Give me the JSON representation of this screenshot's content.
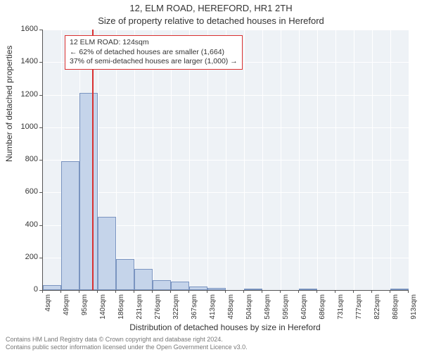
{
  "title_line1": "12, ELM ROAD, HEREFORD, HR1 2TH",
  "title_line2": "Size of property relative to detached houses in Hereford",
  "yaxis_label": "Number of detached properties",
  "xaxis_label": "Distribution of detached houses by size in Hereford",
  "chart": {
    "type": "histogram",
    "background_color": "#eef2f6",
    "grid_color": "#ffffff",
    "axis_color": "#555555",
    "bar_fill": "#c5d4ea",
    "bar_border": "#7a94c0",
    "marker_x": 124,
    "marker_color": "#d93030",
    "ylim": [
      0,
      1600
    ],
    "ytick_step": 200,
    "yticks": [
      0,
      200,
      400,
      600,
      800,
      1000,
      1200,
      1400,
      1600
    ],
    "xlim": [
      0,
      920
    ],
    "x_bin_width": 45.4,
    "xtick_labels": [
      "4sqm",
      "49sqm",
      "95sqm",
      "140sqm",
      "186sqm",
      "231sqm",
      "276sqm",
      "322sqm",
      "367sqm",
      "413sqm",
      "458sqm",
      "504sqm",
      "549sqm",
      "595sqm",
      "640sqm",
      "686sqm",
      "731sqm",
      "777sqm",
      "822sqm",
      "868sqm",
      "913sqm"
    ],
    "bar_values": [
      30,
      790,
      1210,
      450,
      190,
      130,
      60,
      50,
      20,
      15,
      0,
      5,
      0,
      0,
      5,
      0,
      0,
      0,
      0,
      5
    ],
    "label_fontsize": 12,
    "tick_fontsize": 11,
    "xtick_fontsize": 10
  },
  "annotation": {
    "line1": "12 ELM ROAD: 124sqm",
    "line2": "← 62% of detached houses are smaller (1,664)",
    "line3": "37% of semi-detached houses are larger (1,000) →",
    "border_color": "#d93030",
    "background": "#ffffff",
    "fontsize": 10.5
  },
  "footer": {
    "line1": "Contains HM Land Registry data © Crown copyright and database right 2024.",
    "line2": "Contains public sector information licensed under the Open Government Licence v3.0.",
    "color": "#777777",
    "fontsize": 9
  }
}
